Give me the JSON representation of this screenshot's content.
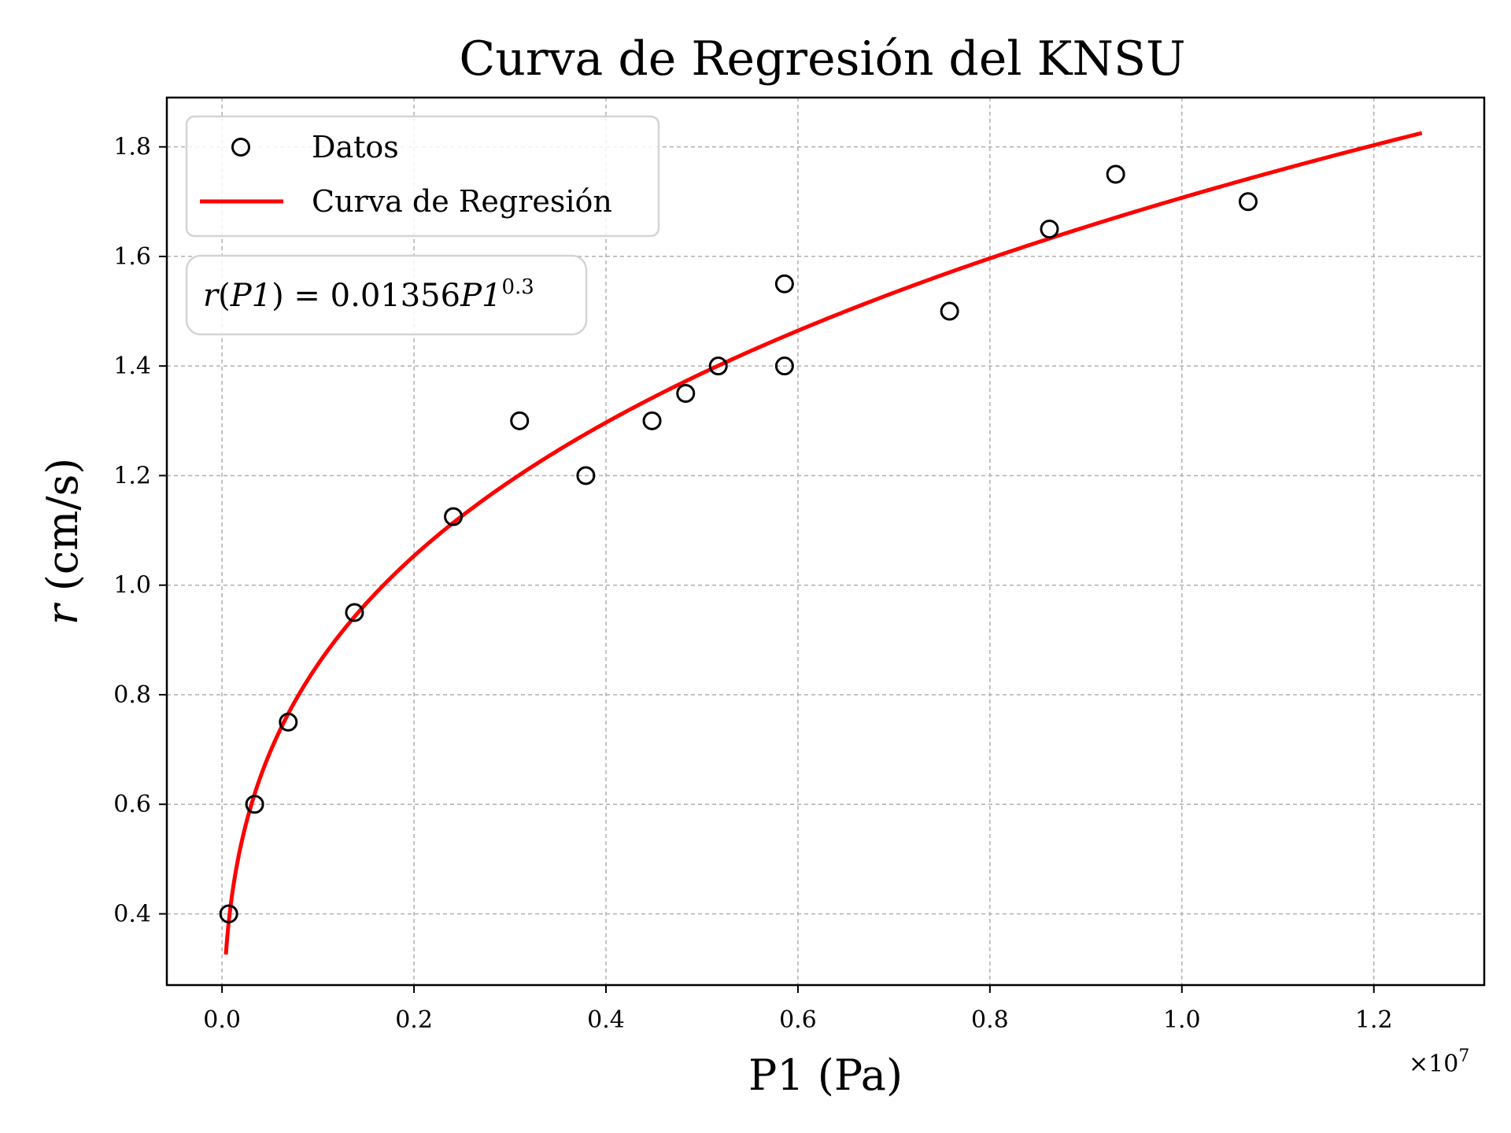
{
  "chart_data": {
    "type": "scatter",
    "title": "Curva de Regresión del KNSU",
    "xlabel": "P1 (Pa)",
    "ylabel": "(cm/s)",
    "ylabel_symbol": "r",
    "x_multiplier": "×10",
    "x_multiplier_exp": "7",
    "xlim": [
      -0.0575,
      1.315
    ],
    "ylim": [
      0.27,
      1.89
    ],
    "x_ticks": [
      0.0,
      0.2,
      0.4,
      0.6,
      0.8,
      1.0,
      1.2
    ],
    "x_tick_labels": [
      "0.0",
      "0.2",
      "0.4",
      "0.6",
      "0.8",
      "1.0",
      "1.2"
    ],
    "y_ticks": [
      0.4,
      0.6,
      0.8,
      1.0,
      1.2,
      1.4,
      1.6,
      1.8
    ],
    "y_tick_labels": [
      "0.4",
      "0.6",
      "0.8",
      "1.0",
      "1.2",
      "1.4",
      "1.6",
      "1.8"
    ],
    "grid": true,
    "legend_position": "top-left",
    "series": [
      {
        "name": "Datos",
        "kind": "scatter",
        "color": "#000000",
        "x": [
          0.007,
          0.034,
          0.069,
          0.138,
          0.241,
          0.31,
          0.379,
          0.448,
          0.483,
          0.517,
          0.586,
          0.586,
          0.758,
          0.862,
          0.931,
          1.069
        ],
        "y": [
          0.4,
          0.6,
          0.75,
          0.95,
          1.125,
          1.3,
          1.2,
          1.3,
          1.35,
          1.4,
          1.4,
          1.55,
          1.5,
          1.65,
          1.75,
          1.7
        ]
      },
      {
        "name": "Curva de Regresión",
        "kind": "line",
        "color": "#ff0000",
        "x_range": [
          0.004,
          1.25
        ],
        "coefficient": 0.01356,
        "exponent": 0.3
      }
    ],
    "annotation": {
      "lhs": "r",
      "var": "P1",
      "eq": " = 0.01356",
      "exp": "0.3"
    }
  }
}
